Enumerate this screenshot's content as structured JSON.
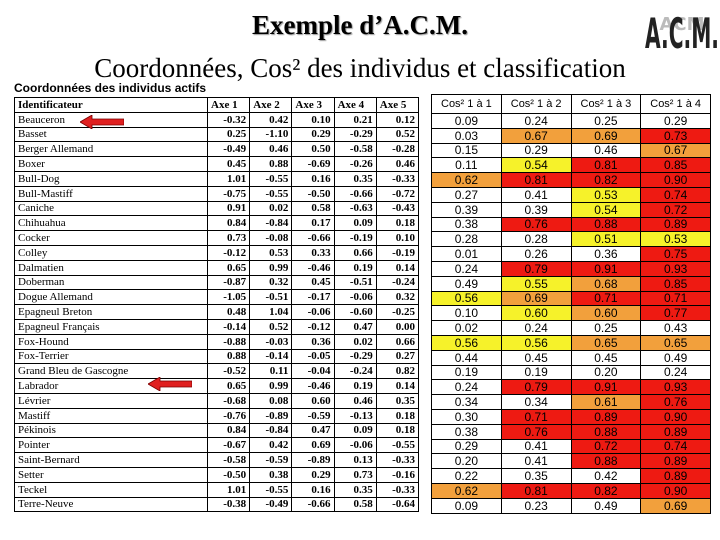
{
  "title": "Exemple d’A.C.M.",
  "subtitle": "Coordonnées, Cos² des individus et classification",
  "logo_text": "A.C.M.",
  "logo_shadow_text": "ACM",
  "table_caption": "Coordonnées des individus actifs",
  "headers": [
    "Identificateur",
    "Axe 1",
    "Axe 2",
    "Axe 3",
    "Axe 4",
    "Axe 5"
  ],
  "cos_headers": [
    "Cos² 1 à 1",
    "Cos² 1 à 2",
    "Cos² 1 à 3",
    "Cos² 1 à 4"
  ],
  "colors": {
    "orange": "#f2a03c",
    "yellow": "#f6f22a",
    "red": "#ee1a12",
    "arrow": "#e02020"
  },
  "rows": [
    {
      "name": "Beauceron",
      "axes": [
        "-0.32",
        "0.42",
        "0.10",
        "0.21",
        "0.12"
      ],
      "cos": [
        "0.09",
        "0.24",
        "0.25",
        "0.29"
      ],
      "col": [
        "",
        "",
        "",
        ""
      ]
    },
    {
      "name": "Basset",
      "axes": [
        "0.25",
        "-1.10",
        "0.29",
        "-0.29",
        "0.52"
      ],
      "cos": [
        "0.03",
        "0.67",
        "0.69",
        "0.73"
      ],
      "col": [
        "",
        "orange",
        "orange",
        "red"
      ]
    },
    {
      "name": "Berger Allemand",
      "axes": [
        "-0.49",
        "0.46",
        "0.50",
        "-0.58",
        "-0.28"
      ],
      "cos": [
        "0.15",
        "0.29",
        "0.46",
        "0.67"
      ],
      "col": [
        "",
        "",
        "",
        "orange"
      ]
    },
    {
      "name": "Boxer",
      "axes": [
        "0.45",
        "0.88",
        "-0.69",
        "-0.26",
        "0.46"
      ],
      "cos": [
        "0.11",
        "0.54",
        "0.81",
        "0.85"
      ],
      "col": [
        "",
        "yellow",
        "red",
        "red"
      ]
    },
    {
      "name": "Bull-Dog",
      "axes": [
        "1.01",
        "-0.55",
        "0.16",
        "0.35",
        "-0.33"
      ],
      "cos": [
        "0.62",
        "0.81",
        "0.82",
        "0.90"
      ],
      "col": [
        "orange",
        "red",
        "red",
        "red"
      ]
    },
    {
      "name": "Bull-Mastiff",
      "axes": [
        "-0.75",
        "-0.55",
        "-0.50",
        "-0.66",
        "-0.72"
      ],
      "cos": [
        "0.27",
        "0.41",
        "0.53",
        "0.74"
      ],
      "col": [
        "",
        "",
        "yellow",
        "red"
      ]
    },
    {
      "name": "Caniche",
      "axes": [
        "0.91",
        "0.02",
        "0.58",
        "-0.63",
        "-0.43"
      ],
      "cos": [
        "0.39",
        "0.39",
        "0.54",
        "0.72"
      ],
      "col": [
        "",
        "",
        "yellow",
        "red"
      ]
    },
    {
      "name": "Chihuahua",
      "axes": [
        "0.84",
        "-0.84",
        "0.17",
        "0.09",
        "0.18"
      ],
      "cos": [
        "0.38",
        "0.76",
        "0.88",
        "0.89"
      ],
      "col": [
        "",
        "red",
        "red",
        "red"
      ]
    },
    {
      "name": "Cocker",
      "axes": [
        "0.73",
        "-0.08",
        "-0.66",
        "-0.19",
        "0.10"
      ],
      "cos": [
        "0.28",
        "0.28",
        "0.51",
        "0.53"
      ],
      "col": [
        "",
        "",
        "yellow",
        "yellow"
      ]
    },
    {
      "name": "Colley",
      "axes": [
        "-0.12",
        "0.53",
        "0.33",
        "0.66",
        "-0.19"
      ],
      "cos": [
        "0.01",
        "0.26",
        "0.36",
        "0.75"
      ],
      "col": [
        "",
        "",
        "",
        "red"
      ]
    },
    {
      "name": "Dalmatien",
      "axes": [
        "0.65",
        "0.99",
        "-0.46",
        "0.19",
        "0.14"
      ],
      "cos": [
        "0.24",
        "0.79",
        "0.91",
        "0.93"
      ],
      "col": [
        "",
        "red",
        "red",
        "red"
      ]
    },
    {
      "name": "Doberman",
      "axes": [
        "-0.87",
        "0.32",
        "0.45",
        "-0.51",
        "-0.24"
      ],
      "cos": [
        "0.49",
        "0.55",
        "0.68",
        "0.85"
      ],
      "col": [
        "",
        "yellow",
        "orange",
        "red"
      ]
    },
    {
      "name": "Dogue Allemand",
      "axes": [
        "-1.05",
        "-0.51",
        "-0.17",
        "-0.06",
        "0.32"
      ],
      "cos": [
        "0.56",
        "0.69",
        "0.71",
        "0.71"
      ],
      "col": [
        "yellow",
        "orange",
        "red",
        "red"
      ]
    },
    {
      "name": "Epagneul Breton",
      "axes": [
        "0.48",
        "1.04",
        "-0.06",
        "-0.60",
        "-0.25"
      ],
      "cos": [
        "0.10",
        "0.60",
        "0.60",
        "0.77"
      ],
      "col": [
        "",
        "yellow",
        "orange",
        "red"
      ]
    },
    {
      "name": "Epagneul Français",
      "axes": [
        "-0.14",
        "0.52",
        "-0.12",
        "0.47",
        "0.00"
      ],
      "cos": [
        "0.02",
        "0.24",
        "0.25",
        "0.43"
      ],
      "col": [
        "",
        "",
        "",
        ""
      ]
    },
    {
      "name": "Fox-Hound",
      "axes": [
        "-0.88",
        "-0.03",
        "0.36",
        "0.02",
        "0.66"
      ],
      "cos": [
        "0.56",
        "0.56",
        "0.65",
        "0.65"
      ],
      "col": [
        "yellow",
        "yellow",
        "orange",
        "orange"
      ]
    },
    {
      "name": "Fox-Terrier",
      "axes": [
        "0.88",
        "-0.14",
        "-0.05",
        "-0.29",
        "0.27"
      ],
      "cos": [
        "0.44",
        "0.45",
        "0.45",
        "0.49"
      ],
      "col": [
        "",
        "",
        "",
        ""
      ]
    },
    {
      "name": "Grand Bleu de Gascogne",
      "axes": [
        "-0.52",
        "0.11",
        "-0.04",
        "-0.24",
        "0.82"
      ],
      "cos": [
        "0.19",
        "0.19",
        "0.20",
        "0.24"
      ],
      "col": [
        "",
        "",
        "",
        ""
      ]
    },
    {
      "name": "Labrador",
      "axes": [
        "0.65",
        "0.99",
        "-0.46",
        "0.19",
        "0.14"
      ],
      "cos": [
        "0.24",
        "0.79",
        "0.91",
        "0.93"
      ],
      "col": [
        "",
        "red",
        "red",
        "red"
      ]
    },
    {
      "name": "Lévrier",
      "axes": [
        "-0.68",
        "0.08",
        "0.60",
        "0.46",
        "0.35"
      ],
      "cos": [
        "0.34",
        "0.34",
        "0.61",
        "0.76"
      ],
      "col": [
        "",
        "",
        "orange",
        "red"
      ]
    },
    {
      "name": "Mastiff",
      "axes": [
        "-0.76",
        "-0.89",
        "-0.59",
        "-0.13",
        "0.18"
      ],
      "cos": [
        "0.30",
        "0.71",
        "0.89",
        "0.90"
      ],
      "col": [
        "",
        "red",
        "red",
        "red"
      ]
    },
    {
      "name": "Pékinois",
      "axes": [
        "0.84",
        "-0.84",
        "0.47",
        "0.09",
        "0.18"
      ],
      "cos": [
        "0.38",
        "0.76",
        "0.88",
        "0.89"
      ],
      "col": [
        "",
        "red",
        "red",
        "red"
      ]
    },
    {
      "name": "Pointer",
      "axes": [
        "-0.67",
        "0.42",
        "0.69",
        "-0.06",
        "-0.55"
      ],
      "cos": [
        "0.29",
        "0.41",
        "0.72",
        "0.74"
      ],
      "col": [
        "",
        "",
        "red",
        "red"
      ]
    },
    {
      "name": "Saint-Bernard",
      "axes": [
        "-0.58",
        "-0.59",
        "-0.89",
        "0.13",
        "-0.33"
      ],
      "cos": [
        "0.20",
        "0.41",
        "0.88",
        "0.89"
      ],
      "col": [
        "",
        "",
        "red",
        "red"
      ]
    },
    {
      "name": "Setter",
      "axes": [
        "-0.50",
        "0.38",
        "0.29",
        "0.73",
        "-0.16"
      ],
      "cos": [
        "0.22",
        "0.35",
        "0.42",
        "0.89"
      ],
      "col": [
        "",
        "",
        "",
        "red"
      ]
    },
    {
      "name": "Teckel",
      "axes": [
        "1.01",
        "-0.55",
        "0.16",
        "0.35",
        "-0.33"
      ],
      "cos": [
        "0.62",
        "0.81",
        "0.82",
        "0.90"
      ],
      "col": [
        "orange",
        "red",
        "red",
        "red"
      ]
    },
    {
      "name": "Terre-Neuve",
      "axes": [
        "-0.38",
        "-0.49",
        "-0.66",
        "0.58",
        "-0.64"
      ],
      "cos": [
        "0.09",
        "0.23",
        "0.49",
        "0.69"
      ],
      "col": [
        "",
        "",
        "",
        "orange"
      ]
    }
  ]
}
